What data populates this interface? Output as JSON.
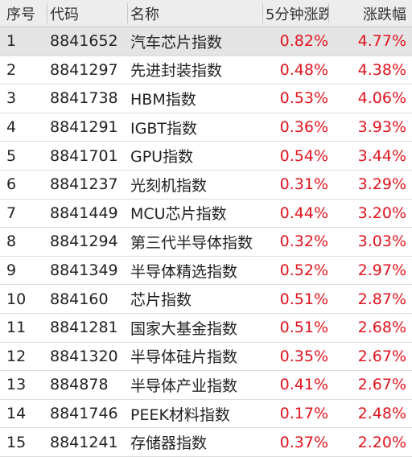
{
  "table": {
    "header": [
      "序号",
      "代码",
      "名称",
      "5分钟涨跌",
      "涨跌幅"
    ],
    "rows": [
      [
        "1",
        "8841652",
        "汽车芯片指数",
        "0.82%",
        "4.77%"
      ],
      [
        "2",
        "8841297",
        "先进封装指数",
        "0.48%",
        "4.38%"
      ],
      [
        "3",
        "8841738",
        "HBM指数",
        "0.53%",
        "4.06%"
      ],
      [
        "4",
        "8841291",
        "IGBT指数",
        "0.36%",
        "3.93%"
      ],
      [
        "5",
        "8841701",
        "GPU指数",
        "0.54%",
        "3.44%"
      ],
      [
        "6",
        "8841237",
        "光刻机指数",
        "0.31%",
        "3.29%"
      ],
      [
        "7",
        "8841449",
        "MCU芯片指数",
        "0.44%",
        "3.20%"
      ],
      [
        "8",
        "8841294",
        "第三代半导体指数",
        "0.32%",
        "3.03%"
      ],
      [
        "9",
        "8841349",
        "半导体精选指数",
        "0.52%",
        "2.97%"
      ],
      [
        "10",
        "884160",
        "芯片指数",
        "0.51%",
        "2.87%"
      ],
      [
        "11",
        "8841281",
        "国家大基金指数",
        "0.51%",
        "2.68%"
      ],
      [
        "12",
        "8841320",
        "半导体硅片指数",
        "0.35%",
        "2.67%"
      ],
      [
        "13",
        "884878",
        "半导体产业指数",
        "0.41%",
        "2.67%"
      ],
      [
        "14",
        "8841746",
        "PEEK材料指数",
        "0.17%",
        "2.48%"
      ],
      [
        "15",
        "8841241",
        "存储器指数",
        "0.37%",
        "2.20%"
      ]
    ]
  }
}
